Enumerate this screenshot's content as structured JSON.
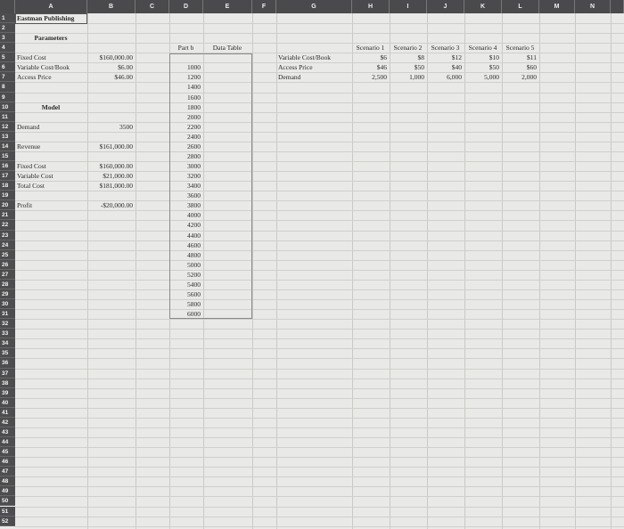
{
  "columns": [
    "A",
    "B",
    "C",
    "D",
    "E",
    "F",
    "G",
    "H",
    "I",
    "J",
    "K",
    "L",
    "M",
    "N"
  ],
  "row_count": 52,
  "cells": {
    "A1": "Eastman Publishing",
    "A3": "Parameters",
    "A5": "Fixed Cost",
    "B5": "$160,000.00",
    "A6": "Variable Cost/Book",
    "B6": "$6.00",
    "A7": "Access Price",
    "B7": "$46.00",
    "A10": "Model",
    "A12": "Demand",
    "B12": "3500",
    "A14": "Revenue",
    "B14": "$161,000.00",
    "A16": "Fixed Cost",
    "B16": "$160,000.00",
    "A17": "Variable Cost",
    "B17": "$21,000.00",
    "A18": "Total Cost",
    "B18": "$181,000.00",
    "A20": "Profit",
    "B20": "-$20,000.00",
    "D4": "Part b",
    "E4": "Data Table",
    "D6": "1000",
    "D7": "1200",
    "D8": "1400",
    "D9": "1600",
    "D10": "1800",
    "D11": "2000",
    "D12": "2200",
    "D13": "2400",
    "D14": "2600",
    "D15": "2800",
    "D16": "3000",
    "D17": "3200",
    "D18": "3400",
    "D19": "3600",
    "D20": "3800",
    "D21": "4000",
    "D22": "4200",
    "D23": "4400",
    "D24": "4600",
    "D25": "4800",
    "D26": "5000",
    "D27": "5200",
    "D28": "5400",
    "D29": "5600",
    "D30": "5800",
    "D31": "6000",
    "H4": "Scenario 1",
    "I4": "Scenario 2",
    "J4": "Scenario 3",
    "K4": "Scenario 4",
    "L4": "Scenario 5",
    "G5": "Variable Cost/Book",
    "H5": "$6",
    "I5": "$8",
    "J5": "$12",
    "K5": "$10",
    "L5": "$11",
    "G6": "Access Price",
    "H6": "$46",
    "I6": "$50",
    "J6": "$40",
    "K6": "$50",
    "L6": "$60",
    "G7": "Demand",
    "H7": "2,500",
    "I7": "1,000",
    "J7": "6,000",
    "K7": "5,000",
    "L7": "2,000"
  }
}
